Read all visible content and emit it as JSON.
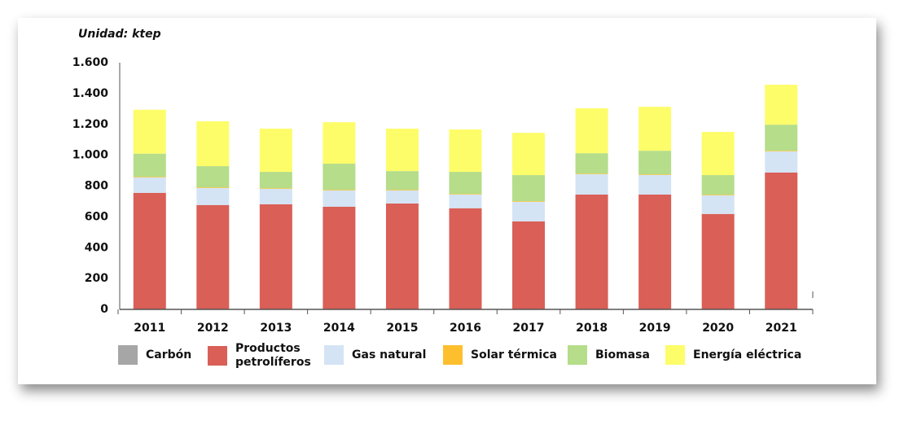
{
  "chart_data": {
    "type": "stacked-bar",
    "subtitle": "Unidad: ktep",
    "categories": [
      "2011",
      "2012",
      "2013",
      "2014",
      "2015",
      "2016",
      "2017",
      "2018",
      "2019",
      "2020",
      "2021"
    ],
    "series": [
      {
        "name": "Carbón",
        "color": "#a6a6a6",
        "values": [
          1,
          1,
          1,
          1,
          1,
          1,
          1,
          1,
          1,
          1,
          1
        ]
      },
      {
        "name": "Productos petrolíferos",
        "color": "#d95f57",
        "values": [
          755,
          676,
          681,
          665,
          686,
          655,
          570,
          744,
          744,
          618,
          887
        ]
      },
      {
        "name": "Gas natural",
        "color": "#d4e4f5",
        "values": [
          100,
          111,
          100,
          106,
          85,
          89,
          127,
          132,
          127,
          121,
          137
        ]
      },
      {
        "name": "Solar térmica",
        "color": "#fdbf2d",
        "values": [
          4,
          4,
          4,
          4,
          4,
          4,
          4,
          4,
          4,
          4,
          4
        ]
      },
      {
        "name": "Biomasa",
        "color": "#b5dd8a",
        "values": [
          150,
          137,
          106,
          169,
          121,
          143,
          169,
          132,
          153,
          127,
          169
        ]
      },
      {
        "name": "Energía eléctrica",
        "color": "#fdfd6a",
        "values": [
          285,
          291,
          280,
          269,
          275,
          275,
          274,
          291,
          285,
          280,
          259
        ]
      }
    ],
    "ylim": [
      0,
      1600
    ],
    "yticks": [
      0,
      200,
      400,
      600,
      800,
      {
        "value": 1000,
        "label": "1.000"
      },
      {
        "value": 1200,
        "label": "1.200"
      },
      {
        "value": 1400,
        "label": "1.400"
      },
      {
        "value": 1600,
        "label": "1.600"
      }
    ]
  }
}
